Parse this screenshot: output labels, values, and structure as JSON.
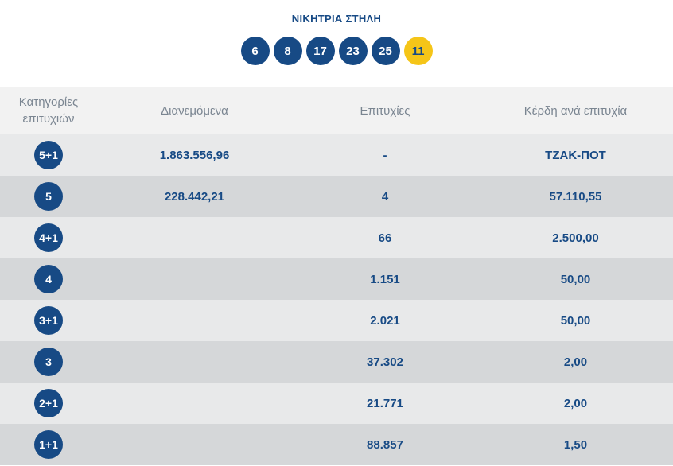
{
  "title": "ΝΙΚΗΤΡΙΑ ΣΤΗΛΗ",
  "winning_numbers": [
    "6",
    "8",
    "17",
    "23",
    "25"
  ],
  "joker_number": "11",
  "colors": {
    "ball": "#174a85",
    "joker_ball": "#f5c518",
    "row_light": "#e8e9ea",
    "row_dark": "#d5d7d9",
    "header_bg": "#f2f2f2"
  },
  "table": {
    "headers": {
      "category_line1": "Κατηγορίες",
      "category_line2": "επιτυχιών",
      "distributed": "Διανεμόμενα",
      "winners": "Επιτυχίες",
      "prize": "Κέρδη ανά επιτυχία"
    },
    "rows": [
      {
        "category": "5+1",
        "distributed": "1.863.556,96",
        "winners": "-",
        "prize": "ΤΖΑΚ-ΠΟΤ"
      },
      {
        "category": "5",
        "distributed": "228.442,21",
        "winners": "4",
        "prize": "57.110,55"
      },
      {
        "category": "4+1",
        "distributed": "",
        "winners": "66",
        "prize": "2.500,00"
      },
      {
        "category": "4",
        "distributed": "",
        "winners": "1.151",
        "prize": "50,00"
      },
      {
        "category": "3+1",
        "distributed": "",
        "winners": "2.021",
        "prize": "50,00"
      },
      {
        "category": "3",
        "distributed": "",
        "winners": "37.302",
        "prize": "2,00"
      },
      {
        "category": "2+1",
        "distributed": "",
        "winners": "21.771",
        "prize": "2,00"
      },
      {
        "category": "1+1",
        "distributed": "",
        "winners": "88.857",
        "prize": "1,50"
      }
    ]
  }
}
